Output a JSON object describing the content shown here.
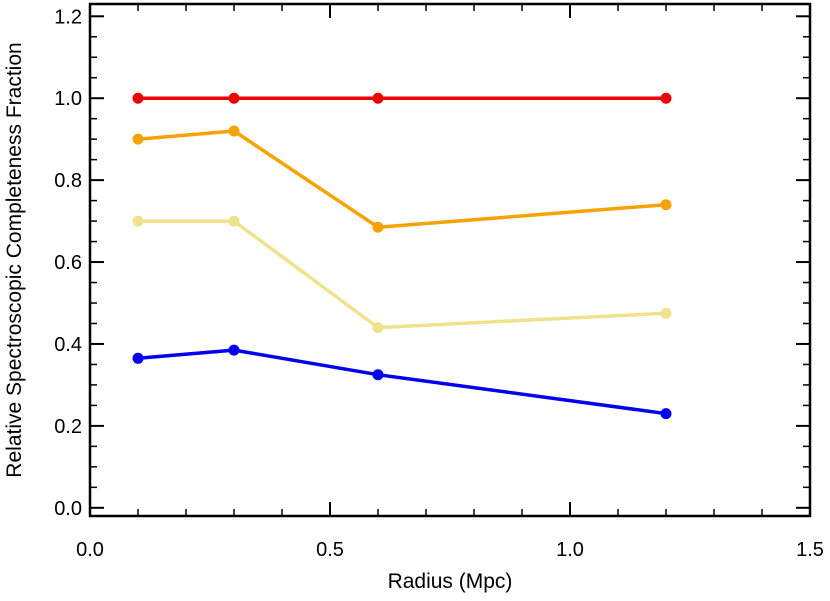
{
  "chart_data": {
    "type": "line",
    "xlabel": "Radius (Mpc)",
    "ylabel": "Relative Spectroscopic Completeness Fraction",
    "xlim": [
      0.0,
      1.5
    ],
    "ylim": [
      -0.02,
      1.23
    ],
    "x_ticks": [
      0.0,
      0.5,
      1.0,
      1.5
    ],
    "x_tick_labels": [
      "0.0",
      "0.5",
      "1.0",
      "1.5"
    ],
    "y_ticks": [
      0.0,
      0.2,
      0.4,
      0.6,
      0.8,
      1.0,
      1.2
    ],
    "y_tick_labels": [
      "0.0",
      "0.2",
      "0.4",
      "0.6",
      "0.8",
      "1.0",
      "1.2"
    ],
    "grid": false,
    "legend": "none",
    "series": [
      {
        "color": "#ee0000",
        "x": [
          0.1,
          0.3,
          0.6,
          1.2
        ],
        "y": [
          1.0,
          1.0,
          1.0,
          1.0
        ]
      },
      {
        "color": "#f5a300",
        "x": [
          0.1,
          0.3,
          0.6,
          1.2
        ],
        "y": [
          0.9,
          0.92,
          0.685,
          0.74
        ]
      },
      {
        "color": "#efe28c",
        "x": [
          0.1,
          0.3,
          0.6,
          1.2
        ],
        "y": [
          0.7,
          0.7,
          0.44,
          0.475
        ]
      },
      {
        "color": "#0000ee",
        "x": [
          0.1,
          0.3,
          0.6,
          1.2
        ],
        "y": [
          0.365,
          0.385,
          0.325,
          0.23
        ]
      }
    ]
  }
}
